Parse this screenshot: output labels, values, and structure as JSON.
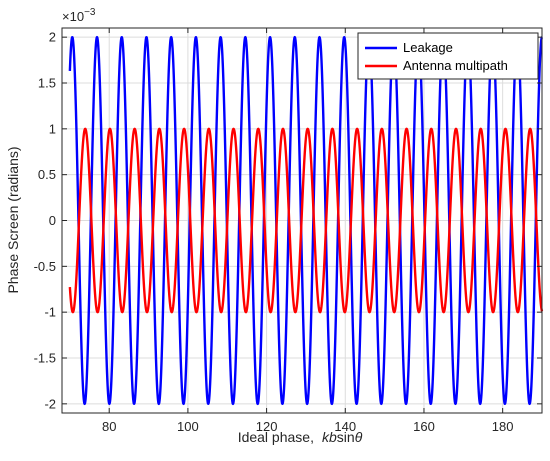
{
  "chart_data": {
    "type": "line",
    "title": "",
    "xlabel": "Ideal phase, kbsinθ",
    "xlabel_parts": {
      "prefix": "Ideal phase,",
      "k": "kb",
      "sin": "sin",
      "theta": "θ"
    },
    "ylabel": "Phase Screen (radians)",
    "y_exponent": {
      "base": "×10",
      "power": "−3"
    },
    "xlim": [
      68,
      190
    ],
    "ylim": [
      -2.1,
      2.1
    ],
    "xticks": [
      80,
      100,
      120,
      140,
      160,
      180
    ],
    "xtick_labels": [
      "80",
      "100",
      "120",
      "140",
      "160",
      "180"
    ],
    "yticks": [
      -2,
      -1.5,
      -1,
      -0.5,
      0,
      0.5,
      1,
      1.5,
      2
    ],
    "ytick_labels": [
      "-2",
      "-1.5",
      "-1",
      "-0.5",
      "0",
      "0.5",
      "1",
      "1.5",
      "2"
    ],
    "grid": true,
    "legend_position": "top-right",
    "series": [
      {
        "name": "Leakage",
        "color": "#0000ff",
        "function": "sinusoid",
        "amplitude": 2,
        "period": 6.283,
        "phase_ref": 76.9,
        "phase_ref_kind": "max",
        "x_start": 70,
        "x_end": 190
      },
      {
        "name": "Antenna multipath",
        "color": "#ff0000",
        "function": "sinusoid",
        "amplitude": 1,
        "period": 6.283,
        "phase_ref": 73.9,
        "phase_ref_kind": "max",
        "x_start": 70,
        "x_end": 190
      }
    ]
  }
}
